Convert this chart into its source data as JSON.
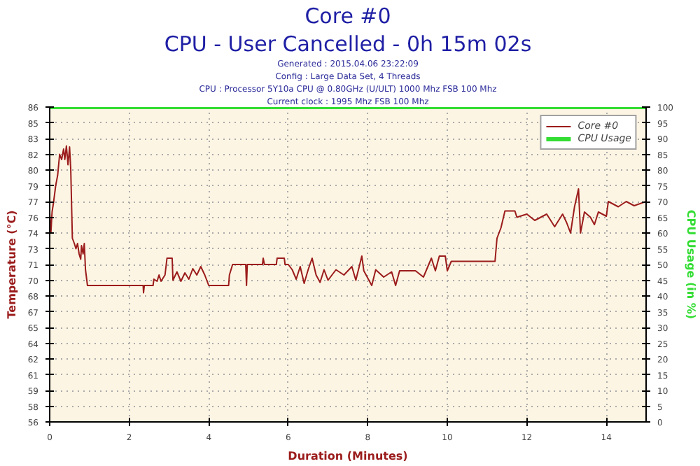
{
  "chart_data": {
    "type": "line",
    "title": "Core #0",
    "subtitle": "CPU - User Cancelled - 0h 15m 02s",
    "annotations": [
      "Generated : 2015.04.06 23:22:09",
      "Config : Large Data Set, 4 Threads",
      "CPU : Processor 5Y10a CPU @ 0.80GHz (U/ULT) 1000 Mhz FSB 100 Mhz",
      "Current clock : 1995 Mhz FSB 100 Mhz"
    ],
    "xlabel": "Duration (Minutes)",
    "ylabel": "Temperature (°C)",
    "y2label": "CPU Usage (in %)",
    "xlim": [
      0,
      15
    ],
    "xticks": [
      0,
      2,
      4,
      6,
      8,
      10,
      12,
      14
    ],
    "ylim": [
      56,
      86
    ],
    "yticks": [
      56,
      {
        "value": 57.5,
        "label": "58"
      },
      59,
      {
        "value": 60.5,
        "label": "61"
      },
      62,
      {
        "value": 63.5,
        "label": "64"
      },
      65,
      {
        "value": 66.5,
        "label": "67"
      },
      68,
      {
        "value": 69.5,
        "label": "70"
      },
      71,
      {
        "value": 72.5,
        "label": "73"
      },
      74,
      {
        "value": 75.5,
        "label": "76"
      },
      77,
      {
        "value": 78.5,
        "label": "79"
      },
      80,
      {
        "value": 81.5,
        "label": "82"
      },
      83,
      {
        "value": 84.5,
        "label": "85"
      },
      86
    ],
    "y2lim": [
      0,
      100
    ],
    "y2ticks": [
      0,
      5,
      10,
      15,
      20,
      25,
      30,
      35,
      40,
      45,
      50,
      55,
      60,
      65,
      70,
      75,
      80,
      85,
      90,
      95,
      100
    ],
    "grid": true,
    "legend": "top right",
    "line_style": "solid",
    "series": [
      {
        "name": "Core #0",
        "color": "#9b1c1c",
        "x": [
          0,
          0.03,
          0.06,
          0.1,
          0.15,
          0.2,
          0.25,
          0.3,
          0.35,
          0.38,
          0.42,
          0.46,
          0.5,
          0.53,
          0.57,
          0.62,
          0.66,
          0.7,
          0.74,
          0.78,
          0.8,
          0.84,
          0.87,
          0.9,
          0.95,
          2.35,
          2.36,
          2.38,
          2.6,
          2.62,
          2.7,
          2.75,
          2.8,
          2.9,
          2.95,
          3.08,
          3.1,
          3.2,
          3.3,
          3.4,
          3.5,
          3.6,
          3.7,
          3.8,
          3.9,
          4.0,
          4.5,
          4.52,
          4.6,
          4.93,
          4.95,
          4.97,
          5.35,
          5.37,
          5.4,
          5.7,
          5.72,
          5.9,
          5.92,
          6.0,
          6.1,
          6.2,
          6.3,
          6.4,
          6.5,
          6.6,
          6.7,
          6.8,
          6.9,
          7.0,
          7.2,
          7.4,
          7.6,
          7.7,
          7.85,
          7.9,
          8.1,
          8.2,
          8.4,
          8.6,
          8.7,
          8.8,
          9.2,
          9.4,
          9.6,
          9.7,
          9.8,
          9.95,
          10.0,
          10.1,
          11.2,
          11.25,
          11.35,
          11.45,
          11.7,
          11.75,
          12.0,
          12.2,
          12.5,
          12.7,
          12.9,
          13.0,
          13.1,
          13.2,
          13.3,
          13.35,
          13.45,
          13.6,
          13.7,
          13.8,
          14.0,
          14.05,
          14.3,
          14.5,
          14.7,
          15.0
        ],
        "values": [
          76,
          74,
          76,
          77,
          78.5,
          79.5,
          81.5,
          81,
          82,
          81,
          82.3,
          80.5,
          82.2,
          80,
          73.5,
          73,
          72.5,
          73,
          72,
          71.5,
          72.8,
          72,
          73,
          70.5,
          69,
          69,
          68.3,
          69,
          69,
          69.6,
          69.4,
          70,
          69.4,
          70,
          71.6,
          71.6,
          69.5,
          70.3,
          69.4,
          70.2,
          69.6,
          70.6,
          70,
          70.8,
          70,
          69,
          69,
          70,
          71,
          71,
          69,
          71,
          71,
          71.6,
          71,
          71,
          71.6,
          71.6,
          71,
          71,
          70.5,
          69.6,
          70.8,
          69.2,
          70.5,
          71.6,
          70,
          69.3,
          70.5,
          69.5,
          70.5,
          70,
          70.8,
          69.5,
          71.8,
          70.4,
          69,
          70.5,
          69.8,
          70.3,
          69,
          70.4,
          70.4,
          69.8,
          71.6,
          70.4,
          71.8,
          71.8,
          70.4,
          71.3,
          71.3,
          73.5,
          74.5,
          76.1,
          76.1,
          75.5,
          75.8,
          75.2,
          75.8,
          74.6,
          75.8,
          75,
          74,
          76.5,
          78.2,
          74,
          76,
          75.5,
          74.8,
          76,
          75.6,
          77,
          76.5,
          77,
          76.6,
          77
        ]
      },
      {
        "name": "CPU Usage",
        "color": "#33dd33",
        "axis": "y2",
        "x": [
          0,
          15
        ],
        "values": [
          100,
          100
        ]
      }
    ]
  }
}
